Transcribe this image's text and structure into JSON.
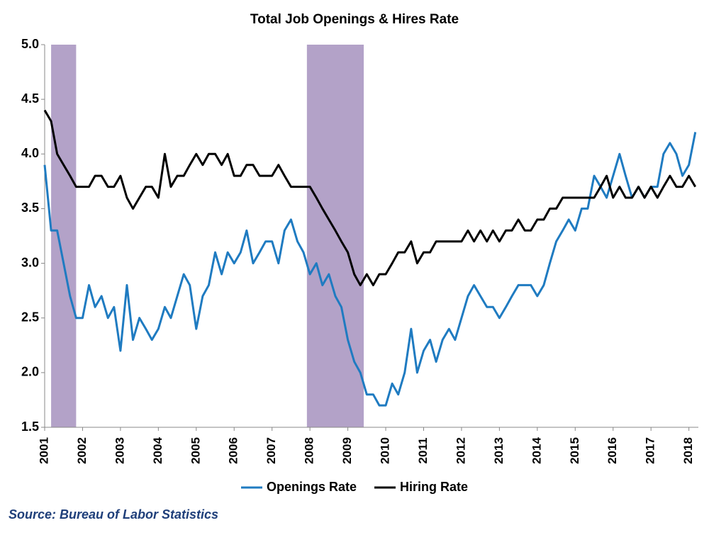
{
  "chart_data": {
    "type": "line",
    "title": "Total Job Openings & Hires Rate",
    "source": "Source: Bureau of Labor Statistics",
    "xlim": [
      2001,
      2018.25
    ],
    "xticks": [
      2001,
      2002,
      2003,
      2004,
      2005,
      2006,
      2007,
      2008,
      2009,
      2010,
      2011,
      2012,
      2013,
      2014,
      2015,
      2016,
      2017,
      2018
    ],
    "ylim": [
      1.5,
      5
    ],
    "yticks": [
      1.5,
      {
        "value": 2,
        "label": "2.0"
      },
      2.5,
      {
        "value": 3,
        "label": "3.0"
      },
      3.5,
      {
        "value": 4,
        "label": "4.0"
      },
      4.5,
      {
        "value": 5,
        "label": "5.0"
      }
    ],
    "grid": false,
    "legend": "bottom",
    "recessions": [
      [
        2001.17,
        2001.83
      ],
      [
        2007.92,
        2009.42
      ]
    ],
    "recession_color": "#b3a2c8",
    "x": [
      2001,
      2001.17,
      2001.33,
      2001.5,
      2001.67,
      2001.83,
      2002,
      2002.17,
      2002.33,
      2002.5,
      2002.67,
      2002.83,
      2003,
      2003.17,
      2003.33,
      2003.5,
      2003.67,
      2003.83,
      2004,
      2004.17,
      2004.33,
      2004.5,
      2004.67,
      2004.83,
      2005,
      2005.17,
      2005.33,
      2005.5,
      2005.67,
      2005.83,
      2006,
      2006.17,
      2006.33,
      2006.5,
      2006.67,
      2006.83,
      2007,
      2007.17,
      2007.33,
      2007.5,
      2007.67,
      2007.83,
      2008,
      2008.17,
      2008.33,
      2008.5,
      2008.67,
      2008.83,
      2009,
      2009.17,
      2009.33,
      2009.5,
      2009.67,
      2009.83,
      2010,
      2010.17,
      2010.33,
      2010.5,
      2010.67,
      2010.83,
      2011,
      2011.17,
      2011.33,
      2011.5,
      2011.67,
      2011.83,
      2012,
      2012.17,
      2012.33,
      2012.5,
      2012.67,
      2012.83,
      2013,
      2013.17,
      2013.33,
      2013.5,
      2013.67,
      2013.83,
      2014,
      2014.17,
      2014.33,
      2014.5,
      2014.67,
      2014.83,
      2015,
      2015.17,
      2015.33,
      2015.5,
      2015.67,
      2015.83,
      2016,
      2016.17,
      2016.33,
      2016.5,
      2016.67,
      2016.83,
      2017,
      2017.17,
      2017.33,
      2017.5,
      2017.67,
      2017.83,
      2018,
      2018.17
    ],
    "series": [
      {
        "name": "Openings Rate",
        "color": "#1f7bc1",
        "values": [
          3.9,
          3.3,
          3.3,
          3.0,
          2.7,
          2.5,
          2.5,
          2.8,
          2.6,
          2.7,
          2.5,
          2.6,
          2.2,
          2.8,
          2.3,
          2.5,
          2.4,
          2.3,
          2.4,
          2.6,
          2.5,
          2.7,
          2.9,
          2.8,
          2.4,
          2.7,
          2.8,
          3.1,
          2.9,
          3.1,
          3.0,
          3.1,
          3.3,
          3.0,
          3.1,
          3.2,
          3.2,
          3.0,
          3.3,
          3.4,
          3.2,
          3.1,
          2.9,
          3.0,
          2.8,
          2.9,
          2.7,
          2.6,
          2.3,
          2.1,
          2.0,
          1.8,
          1.8,
          1.7,
          1.7,
          1.9,
          1.8,
          2.0,
          2.4,
          2.0,
          2.2,
          2.3,
          2.1,
          2.3,
          2.4,
          2.3,
          2.5,
          2.7,
          2.8,
          2.7,
          2.6,
          2.6,
          2.5,
          2.6,
          2.7,
          2.8,
          2.8,
          2.8,
          2.7,
          2.8,
          3.0,
          3.2,
          3.3,
          3.4,
          3.3,
          3.5,
          3.5,
          3.8,
          3.7,
          3.6,
          3.8,
          4.0,
          3.8,
          3.6,
          3.7,
          3.6,
          3.7,
          3.7,
          4.0,
          4.1,
          4.0,
          3.8,
          3.9,
          4.2
        ]
      },
      {
        "name": "Hiring Rate",
        "color": "#000000",
        "values": [
          4.4,
          4.3,
          4.0,
          3.9,
          3.8,
          3.7,
          3.7,
          3.7,
          3.8,
          3.8,
          3.7,
          3.7,
          3.8,
          3.6,
          3.5,
          3.6,
          3.7,
          3.7,
          3.6,
          4.0,
          3.7,
          3.8,
          3.8,
          3.9,
          4.0,
          3.9,
          4.0,
          4.0,
          3.9,
          4.0,
          3.8,
          3.8,
          3.9,
          3.9,
          3.8,
          3.8,
          3.8,
          3.9,
          3.8,
          3.7,
          3.7,
          3.7,
          3.7,
          3.6,
          3.5,
          3.4,
          3.3,
          3.2,
          3.1,
          2.9,
          2.8,
          2.9,
          2.8,
          2.9,
          2.9,
          3.0,
          3.1,
          3.1,
          3.2,
          3.0,
          3.1,
          3.1,
          3.2,
          3.2,
          3.2,
          3.2,
          3.2,
          3.3,
          3.2,
          3.3,
          3.2,
          3.3,
          3.2,
          3.3,
          3.3,
          3.4,
          3.3,
          3.3,
          3.4,
          3.4,
          3.5,
          3.5,
          3.6,
          3.6,
          3.6,
          3.6,
          3.6,
          3.6,
          3.7,
          3.8,
          3.6,
          3.7,
          3.6,
          3.6,
          3.7,
          3.6,
          3.7,
          3.6,
          3.7,
          3.8,
          3.7,
          3.7,
          3.8,
          3.7
        ]
      }
    ]
  }
}
